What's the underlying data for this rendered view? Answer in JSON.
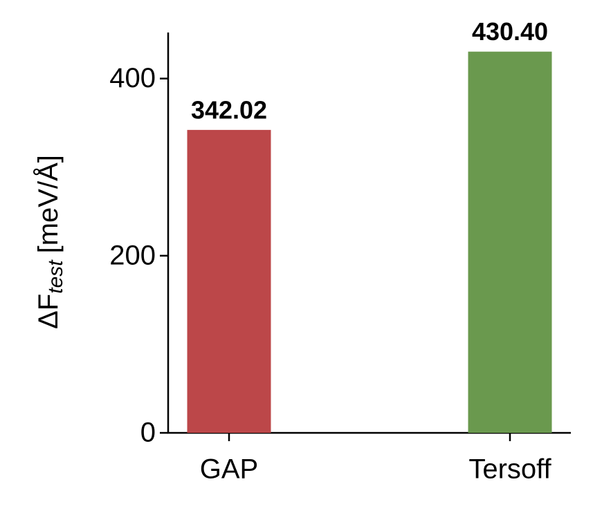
{
  "chart_data": {
    "type": "bar",
    "ylabel": "ΔF",
    "ylabel_subscript": "test",
    "ylabel_unit": "[meV/Å]",
    "categories": [
      "GAP",
      "Tersoff"
    ],
    "values": [
      342.02,
      430.4
    ],
    "value_labels": [
      "342.02",
      "430.40"
    ],
    "colors": [
      "#bc4749",
      "#6a994e"
    ],
    "ylim": [
      0,
      452
    ],
    "yticks": [
      0,
      200,
      400
    ],
    "grid": false
  }
}
